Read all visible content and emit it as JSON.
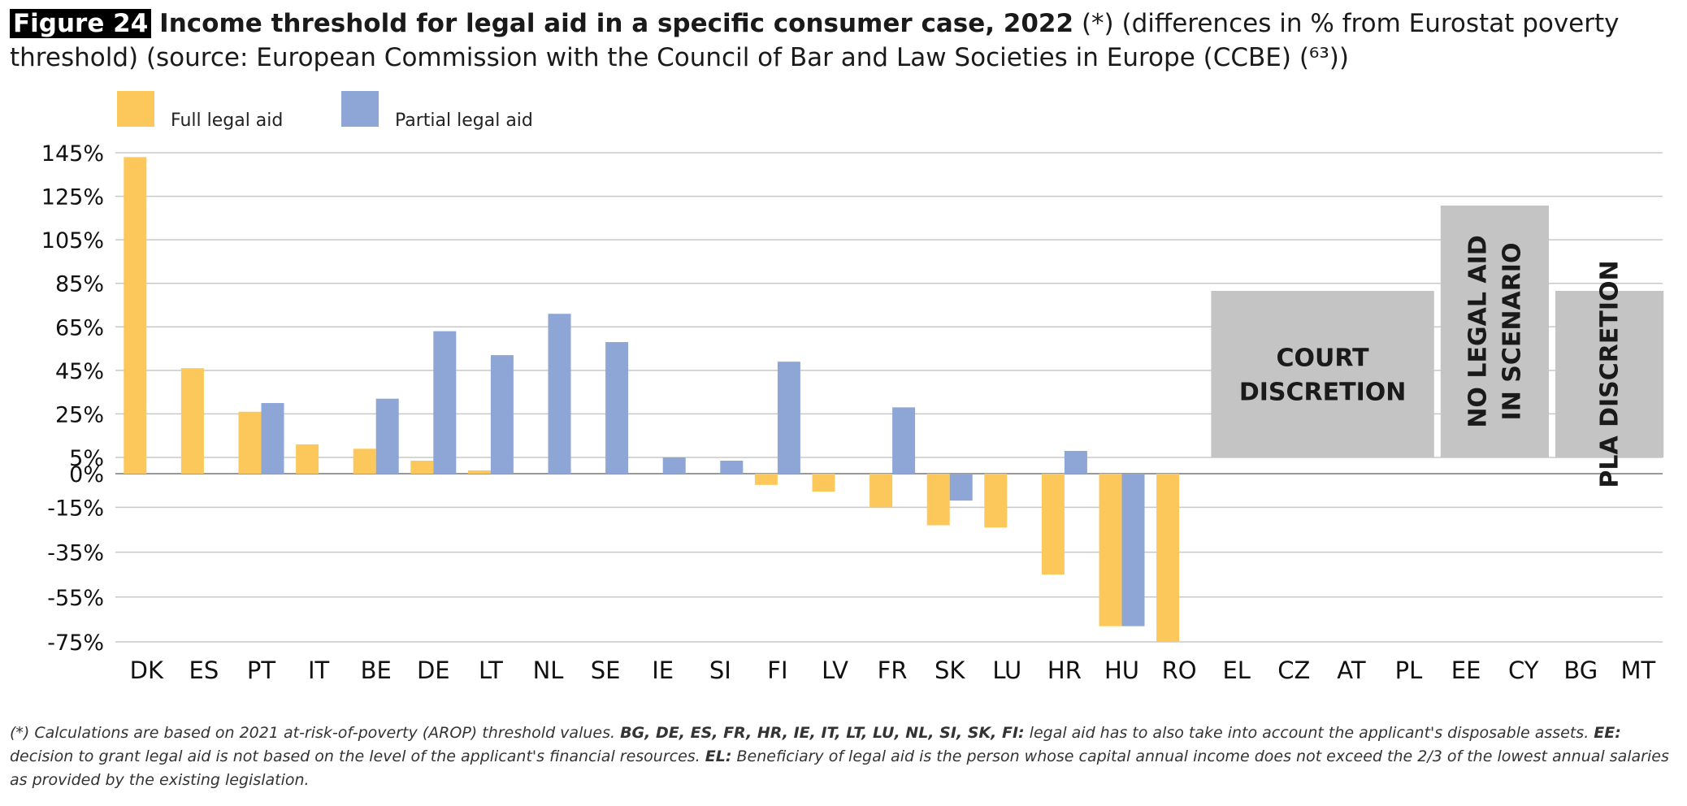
{
  "title": {
    "figure_label": "Figure 24",
    "main": "Income threshold for legal aid in a specific consumer case, 2022",
    "rest": "(*) (differences in % from Eurostat poverty threshold) (source: European Commission with the Council of Bar and Law Societies in Europe (CCBE) (⁶³))"
  },
  "footnote": {
    "line1_start": "(*) Calculations are based on 2021 at-risk-of-poverty (AROP) threshold values.",
    "line1_bold": "BG, DE, ES, FR, HR, IE, IT, LT, LU, NL, SI, SK, FI:",
    "line1_end": "legal aid has to also take into account the applicant's disposable assets.",
    "line2_bold1": "EE:",
    "line2_mid": "decision to grant legal aid is not based on the level of the applicant's financial resources.",
    "line2_bold2": "EL:",
    "line2_end": "Beneficiary of legal aid is the person whose capital annual income does not exceed the 2/3 of the lowest annual salaries as provided by the existing legislation."
  },
  "chart_data": {
    "type": "bar",
    "categories": [
      "DK",
      "ES",
      "PT",
      "IT",
      "BE",
      "DE",
      "LT",
      "NL",
      "SE",
      "IE",
      "SI",
      "FI",
      "LV",
      "FR",
      "SK",
      "LU",
      "HR",
      "HU",
      "RO",
      "EL",
      "CZ",
      "AT",
      "PL",
      "EE",
      "CY",
      "BG",
      "MT"
    ],
    "series": [
      {
        "name": "Full legal aid",
        "color": "#fcc85c",
        "values": [
          143,
          46,
          26,
          11,
          9,
          4,
          1,
          null,
          null,
          null,
          null,
          -5,
          -8,
          -15,
          -23,
          -24,
          -45,
          -68,
          -75,
          null,
          null,
          null,
          null,
          null,
          null,
          null,
          null
        ]
      },
      {
        "name": "Partial legal aid",
        "color": "#8ea6d6",
        "values": [
          null,
          null,
          30,
          null,
          32,
          63,
          52,
          71,
          58,
          5,
          4,
          49,
          null,
          28,
          -12,
          null,
          8,
          -68,
          null,
          null,
          null,
          null,
          null,
          null,
          null,
          null,
          null
        ]
      }
    ],
    "yticks": [
      145,
      125,
      105,
      85,
      65,
      45,
      25,
      5,
      0,
      -15,
      -35,
      -55,
      -75
    ],
    "ytick_labels": [
      "145%",
      "125%",
      "105%",
      "85%",
      "65%",
      "45%",
      "25%",
      "5%",
      "0%",
      "-15%",
      "-35%",
      "-55%",
      "-75%"
    ],
    "ylim": [
      -75,
      145
    ],
    "legend_position": "top-left",
    "annotations": [
      {
        "text": "COURT DISCRETION",
        "lines": [
          "COURT",
          "DISCRETION"
        ],
        "orientation": "horizontal",
        "from": "EL",
        "to": "PL",
        "color": "#c4c4c4"
      },
      {
        "text": "NO LEGAL AID IN SCENARIO",
        "lines": [
          "NO LEGAL AID",
          "IN SCENARIO"
        ],
        "orientation": "vertical",
        "from": "EE",
        "to": "CY",
        "color": "#c4c4c4"
      },
      {
        "text": "PLA DISCRETION",
        "lines": [
          "PLA DISCRETION"
        ],
        "orientation": "vertical",
        "from": "BG",
        "to": "MT",
        "color": "#c4c4c4"
      }
    ]
  }
}
